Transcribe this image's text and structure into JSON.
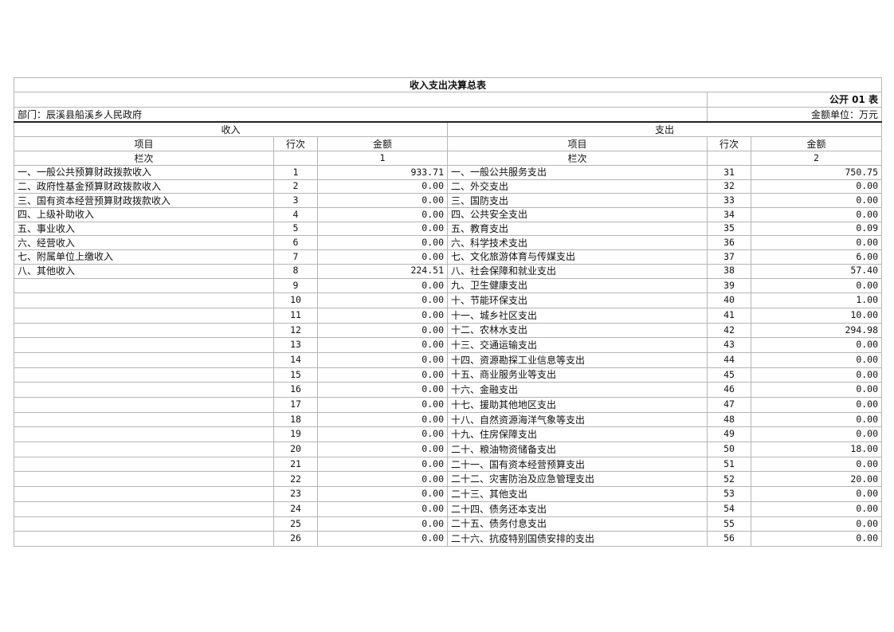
{
  "title": "收入支出决算总表",
  "form_no": "公开 01 表",
  "department": "部门：辰溪县船溪乡人民政府",
  "unit": "金额单位：万元",
  "income_header": "收入",
  "expense_header": "支出",
  "columns": {
    "item": "项目",
    "line": "行次",
    "amount": "金额",
    "lanci": "栏次",
    "income_col": "1",
    "expense_col": "2"
  },
  "rows": [
    {
      "in_item": "一、一般公共预算财政拨款收入",
      "in_line": "1",
      "in_amt": "933.71",
      "ex_item": "一、一般公共服务支出",
      "ex_line": "31",
      "ex_amt": "750.75"
    },
    {
      "in_item": "二、政府性基金预算财政拨款收入",
      "in_line": "2",
      "in_amt": "0.00",
      "ex_item": "二、外交支出",
      "ex_line": "32",
      "ex_amt": "0.00"
    },
    {
      "in_item": "三、国有资本经营预算财政拨款收入",
      "in_line": "3",
      "in_amt": "0.00",
      "ex_item": "三、国防支出",
      "ex_line": "33",
      "ex_amt": "0.00"
    },
    {
      "in_item": "四、上级补助收入",
      "in_line": "4",
      "in_amt": "0.00",
      "ex_item": "四、公共安全支出",
      "ex_line": "34",
      "ex_amt": "0.00"
    },
    {
      "in_item": "五、事业收入",
      "in_line": "5",
      "in_amt": "0.00",
      "ex_item": "五、教育支出",
      "ex_line": "35",
      "ex_amt": "0.09"
    },
    {
      "in_item": "六、经营收入",
      "in_line": "6",
      "in_amt": "0.00",
      "ex_item": "六、科学技术支出",
      "ex_line": "36",
      "ex_amt": "0.00"
    },
    {
      "in_item": "七、附属单位上缴收入",
      "in_line": "7",
      "in_amt": "0.00",
      "ex_item": "七、文化旅游体育与传媒支出",
      "ex_line": "37",
      "ex_amt": "6.00"
    },
    {
      "in_item": "八、其他收入",
      "in_line": "8",
      "in_amt": "224.51",
      "ex_item": "八、社会保障和就业支出",
      "ex_line": "38",
      "ex_amt": "57.40"
    },
    {
      "in_item": "",
      "in_line": "9",
      "in_amt": "0.00",
      "ex_item": "九、卫生健康支出",
      "ex_line": "39",
      "ex_amt": "0.00"
    },
    {
      "in_item": "",
      "in_line": "10",
      "in_amt": "0.00",
      "ex_item": "十、节能环保支出",
      "ex_line": "40",
      "ex_amt": "1.00"
    },
    {
      "in_item": "",
      "in_line": "11",
      "in_amt": "0.00",
      "ex_item": "十一、城乡社区支出",
      "ex_line": "41",
      "ex_amt": "10.00"
    },
    {
      "in_item": "",
      "in_line": "12",
      "in_amt": "0.00",
      "ex_item": "十二、农林水支出",
      "ex_line": "42",
      "ex_amt": "294.98"
    },
    {
      "in_item": "",
      "in_line": "13",
      "in_amt": "0.00",
      "ex_item": "十三、交通运输支出",
      "ex_line": "43",
      "ex_amt": "0.00"
    },
    {
      "in_item": "",
      "in_line": "14",
      "in_amt": "0.00",
      "ex_item": "十四、资源勘探工业信息等支出",
      "ex_line": "44",
      "ex_amt": "0.00"
    },
    {
      "in_item": "",
      "in_line": "15",
      "in_amt": "0.00",
      "ex_item": "十五、商业服务业等支出",
      "ex_line": "45",
      "ex_amt": "0.00"
    },
    {
      "in_item": "",
      "in_line": "16",
      "in_amt": "0.00",
      "ex_item": "十六、金融支出",
      "ex_line": "46",
      "ex_amt": "0.00"
    },
    {
      "in_item": "",
      "in_line": "17",
      "in_amt": "0.00",
      "ex_item": "十七、援助其他地区支出",
      "ex_line": "47",
      "ex_amt": "0.00"
    },
    {
      "in_item": "",
      "in_line": "18",
      "in_amt": "0.00",
      "ex_item": "十八、自然资源海洋气象等支出",
      "ex_line": "48",
      "ex_amt": "0.00"
    },
    {
      "in_item": "",
      "in_line": "19",
      "in_amt": "0.00",
      "ex_item": "十九、住房保障支出",
      "ex_line": "49",
      "ex_amt": "0.00"
    },
    {
      "in_item": "",
      "in_line": "20",
      "in_amt": "0.00",
      "ex_item": "二十、粮油物资储备支出",
      "ex_line": "50",
      "ex_amt": "18.00"
    },
    {
      "in_item": "",
      "in_line": "21",
      "in_amt": "0.00",
      "ex_item": "二十一、国有资本经营预算支出",
      "ex_line": "51",
      "ex_amt": "0.00"
    },
    {
      "in_item": "",
      "in_line": "22",
      "in_amt": "0.00",
      "ex_item": "二十二、灾害防治及应急管理支出",
      "ex_line": "52",
      "ex_amt": "20.00"
    },
    {
      "in_item": "",
      "in_line": "23",
      "in_amt": "0.00",
      "ex_item": "二十三、其他支出",
      "ex_line": "53",
      "ex_amt": "0.00"
    },
    {
      "in_item": "",
      "in_line": "24",
      "in_amt": "0.00",
      "ex_item": "二十四、债务还本支出",
      "ex_line": "54",
      "ex_amt": "0.00"
    },
    {
      "in_item": "",
      "in_line": "25",
      "in_amt": "0.00",
      "ex_item": "二十五、债务付息支出",
      "ex_line": "55",
      "ex_amt": "0.00"
    },
    {
      "in_item": "",
      "in_line": "26",
      "in_amt": "0.00",
      "ex_item": "二十六、抗疫特别国债安排的支出",
      "ex_line": "56",
      "ex_amt": "0.00"
    }
  ]
}
